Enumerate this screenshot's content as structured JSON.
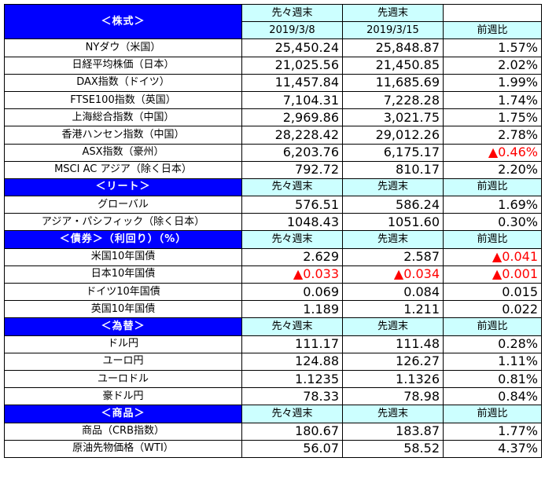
{
  "col_prev": "先々週末",
  "col_curr": "先週末",
  "col_change": "前週比",
  "date_prev": "2019/3/8",
  "date_curr": "2019/3/15",
  "neg_color": "#ff0000",
  "header_bg": "#ccffff",
  "section_bg": "#0000ff",
  "sections": [
    {
      "title": "＜株式＞",
      "rows": [
        {
          "label": "NYダウ（米国）",
          "prev": "25,450.24",
          "curr": "25,848.87",
          "change": "1.57%"
        },
        {
          "label": "日経平均株価（日本）",
          "prev": "21,025.56",
          "curr": "21,450.85",
          "change": "2.02%"
        },
        {
          "label": "DAX指数（ドイツ）",
          "prev": "11,457.84",
          "curr": "11,685.69",
          "change": "1.99%"
        },
        {
          "label": "FTSE100指数（英国）",
          "prev": "7,104.31",
          "curr": "7,228.28",
          "change": "1.74%"
        },
        {
          "label": "上海総合指数（中国）",
          "prev": "2,969.86",
          "curr": "3,021.75",
          "change": "1.75%"
        },
        {
          "label": "香港ハンセン指数（中国）",
          "prev": "28,228.42",
          "curr": "29,012.26",
          "change": "2.78%"
        },
        {
          "label": "ASX指数（豪州）",
          "prev": "6,203.76",
          "curr": "6,175.17",
          "change": "▲0.46%"
        },
        {
          "label": "MSCI AC アジア（除く日本）",
          "prev": "792.72",
          "curr": "810.17",
          "change": "2.20%"
        }
      ]
    },
    {
      "title": "＜リート＞",
      "rows": [
        {
          "label": "グローバル",
          "prev": "576.51",
          "curr": "586.24",
          "change": "1.69%"
        },
        {
          "label": "アジア・パシフィック（除く日本）",
          "prev": "1048.43",
          "curr": "1051.60",
          "change": "0.30%"
        }
      ]
    },
    {
      "title": "＜債券＞（利回り）（%）",
      "rows": [
        {
          "label": "米国10年国債",
          "prev": "2.629",
          "curr": "2.587",
          "change": "▲0.041"
        },
        {
          "label": "日本10年国債",
          "prev": "▲0.033",
          "curr": "▲0.034",
          "change": "▲0.001"
        },
        {
          "label": "ドイツ10年国債",
          "prev": "0.069",
          "curr": "0.084",
          "change": "0.015"
        },
        {
          "label": "英国10年国債",
          "prev": "1.189",
          "curr": "1.211",
          "change": "0.022"
        }
      ]
    },
    {
      "title": "＜為替＞",
      "rows": [
        {
          "label": "ドル円",
          "prev": "111.17",
          "curr": "111.48",
          "change": "0.28%"
        },
        {
          "label": "ユーロ円",
          "prev": "124.88",
          "curr": "126.27",
          "change": "1.11%"
        },
        {
          "label": "ユーロドル",
          "prev": "1.1235",
          "curr": "1.1326",
          "change": "0.81%"
        },
        {
          "label": "豪ドル円",
          "prev": "78.33",
          "curr": "78.98",
          "change": "0.84%"
        }
      ]
    },
    {
      "title": "＜商品＞",
      "rows": [
        {
          "label": "商品（CRB指数）",
          "prev": "180.67",
          "curr": "183.87",
          "change": "1.77%"
        },
        {
          "label": "原油先物価格（WTI）",
          "prev": "56.07",
          "curr": "58.52",
          "change": "4.37%"
        }
      ]
    }
  ]
}
